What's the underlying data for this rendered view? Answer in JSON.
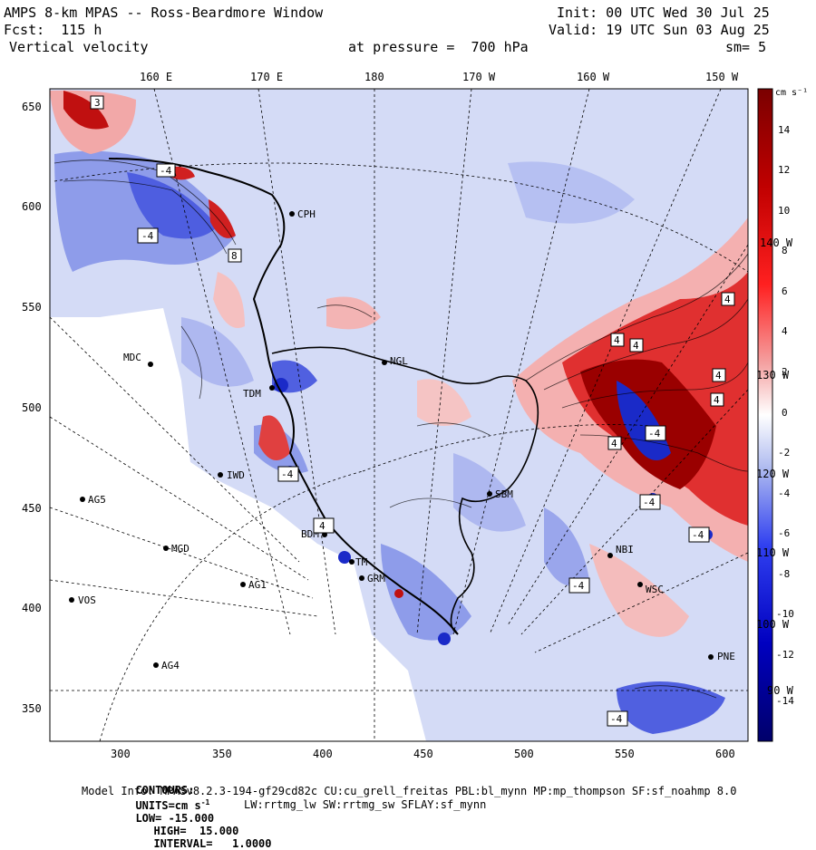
{
  "header": {
    "title": "AMPS 8-km MPAS -- Ross-Beardmore Window",
    "fcst": "Fcst:  115 h",
    "variable": "Vertical velocity",
    "init": "Init: 00 UTC Wed 30 Jul 25",
    "valid": "Valid: 19 UTC Sun 03 Aug 25",
    "pressure": "at pressure =  700 hPa",
    "smoothing": "sm= 5"
  },
  "axes": {
    "top_lon_labels": [
      "160 E",
      "170 E",
      "180",
      "170 W",
      "160 W",
      "150 W"
    ],
    "left_y_labels": [
      "650",
      "600",
      "550",
      "500",
      "450",
      "400",
      "350"
    ],
    "bottom_x_labels": [
      "300",
      "350",
      "400",
      "450",
      "500",
      "550",
      "600"
    ],
    "right_lon_labels": [
      "140 W",
      "130 W",
      "120 W",
      "110 W",
      "100 W",
      "90 W"
    ]
  },
  "colorbar": {
    "units": "cm s⁻¹",
    "tick_labels": [
      "14",
      "12",
      "10",
      "8",
      "6",
      "4",
      "2",
      "0",
      "-2",
      "-4",
      "-6",
      "-8",
      "-10",
      "-12",
      "-14"
    ],
    "colors": {
      "max_red": "#8b0000",
      "red": "#e00000",
      "pink": "#f4b0b0",
      "white": "#ffffff",
      "lightblue": "#b8c4f0",
      "blue": "#3040e0",
      "max_blue": "#00008b"
    }
  },
  "stations": [
    {
      "name": "CPH"
    },
    {
      "name": "MDC"
    },
    {
      "name": "TDM"
    },
    {
      "name": "NGL"
    },
    {
      "name": "IWD"
    },
    {
      "name": "AG5"
    },
    {
      "name": "SBM"
    },
    {
      "name": "MGD"
    },
    {
      "name": "BDM"
    },
    {
      "name": "TM"
    },
    {
      "name": "GRM"
    },
    {
      "name": "AG1"
    },
    {
      "name": "VOS"
    },
    {
      "name": "AG4"
    },
    {
      "name": "NBI"
    },
    {
      "name": "WSC"
    },
    {
      "name": "PNE"
    }
  ],
  "extrema_labels": [
    "3",
    "-4",
    "-4",
    "8",
    "-4",
    "4",
    "4",
    "4",
    "4",
    "4",
    "-4",
    "4",
    "-4",
    "-4",
    "-4",
    "-4",
    "4"
  ],
  "footer": {
    "contours_label": "CONTOURS:",
    "units_label": "UNITS=cm s",
    "units_sup": "-1",
    "low": "LOW= -15.000",
    "high": "HIGH=  15.000",
    "interval": "INTERVAL=   1.0000",
    "model_info": "Model Info: MPASv8.2.3-194-gf29cd82c CU:cu_grell_freitas PBL:bl_mynn MP:mp_thompson SF:sf_noahmp 8.0",
    "model_info2": "LW:rrtmg_lw SW:rrtmg_sw SFLAY:sf_mynn"
  }
}
